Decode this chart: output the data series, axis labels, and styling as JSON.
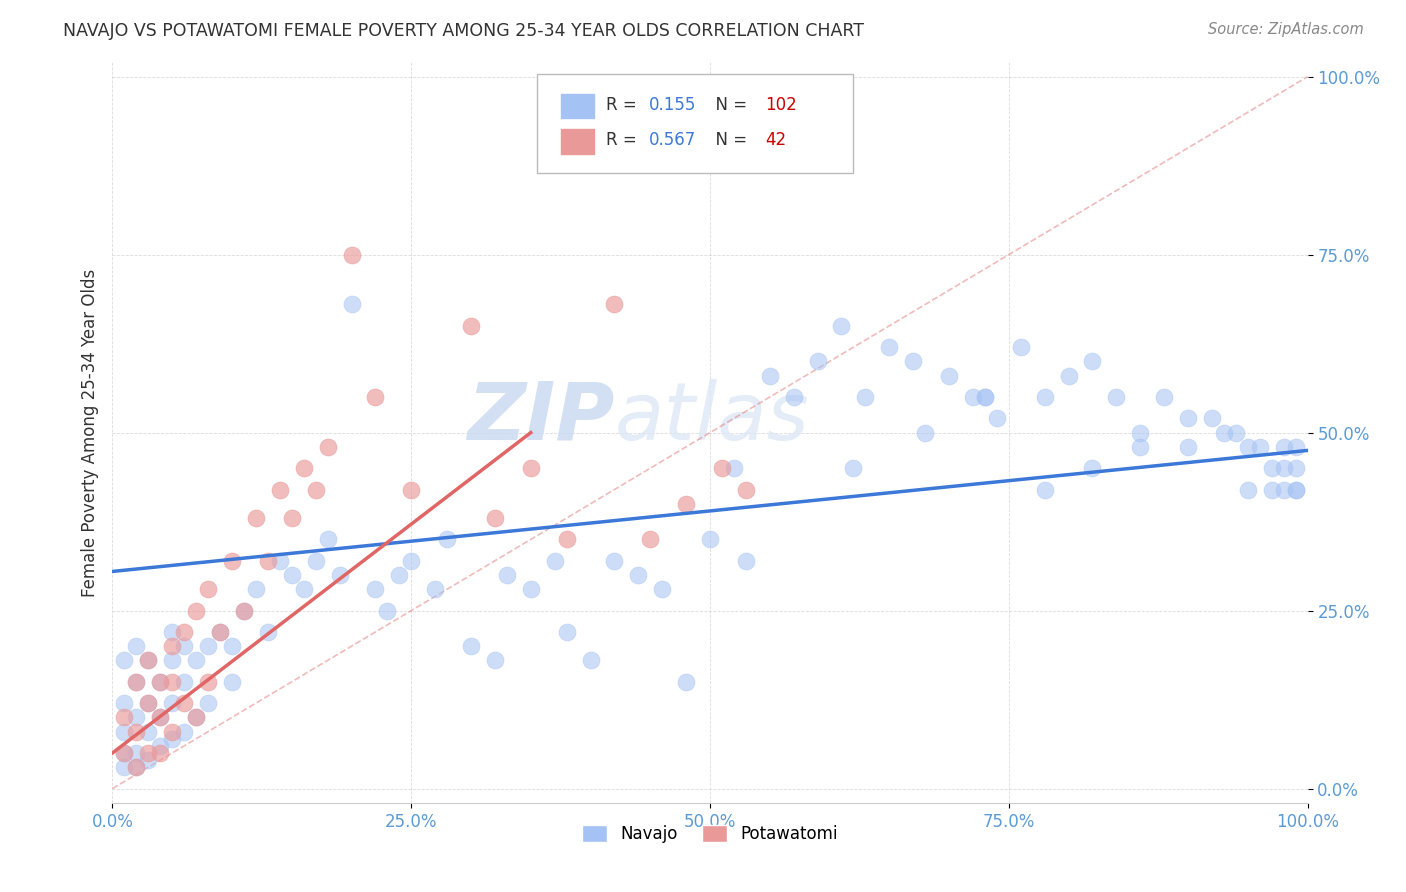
{
  "title": "NAVAJO VS POTAWATOMI FEMALE POVERTY AMONG 25-34 YEAR OLDS CORRELATION CHART",
  "source": "Source: ZipAtlas.com",
  "ylabel": "Female Poverty Among 25-34 Year Olds",
  "navajo_R": 0.155,
  "navajo_N": 102,
  "potawatomi_R": 0.567,
  "potawatomi_N": 42,
  "navajo_color": "#a4c2f4",
  "potawatomi_color": "#ea9999",
  "navajo_line_color": "#3c78d8",
  "potawatomi_line_color": "#e06666",
  "ref_line_color": "#e06666",
  "background_color": "#ffffff",
  "grid_color": "#cccccc",
  "xlim": [
    0,
    1
  ],
  "ylim": [
    -0.02,
    1.02
  ],
  "xticks": [
    0,
    0.25,
    0.5,
    0.75,
    1.0
  ],
  "yticks": [
    0,
    0.25,
    0.5,
    0.75,
    1.0
  ],
  "xticklabels": [
    "0.0%",
    "25.0%",
    "50.0%",
    "75.0%",
    "100.0%"
  ],
  "yticklabels_right": [
    "0.0%",
    "25.0%",
    "50.0%",
    "75.0%",
    "100.0%"
  ],
  "navajo_x": [
    0.01,
    0.01,
    0.01,
    0.01,
    0.01,
    0.02,
    0.02,
    0.02,
    0.02,
    0.02,
    0.03,
    0.03,
    0.03,
    0.03,
    0.04,
    0.04,
    0.04,
    0.05,
    0.05,
    0.05,
    0.05,
    0.06,
    0.06,
    0.06,
    0.07,
    0.07,
    0.08,
    0.08,
    0.09,
    0.1,
    0.1,
    0.11,
    0.12,
    0.13,
    0.14,
    0.15,
    0.16,
    0.17,
    0.18,
    0.19,
    0.2,
    0.22,
    0.23,
    0.24,
    0.25,
    0.27,
    0.28,
    0.3,
    0.32,
    0.33,
    0.35,
    0.37,
    0.38,
    0.4,
    0.42,
    0.44,
    0.46,
    0.48,
    0.5,
    0.52,
    0.55,
    0.57,
    0.59,
    0.61,
    0.63,
    0.65,
    0.67,
    0.7,
    0.72,
    0.74,
    0.76,
    0.78,
    0.8,
    0.82,
    0.84,
    0.86,
    0.88,
    0.9,
    0.92,
    0.94,
    0.95,
    0.96,
    0.97,
    0.97,
    0.98,
    0.98,
    0.98,
    0.99,
    0.99,
    0.99,
    0.99,
    0.53,
    0.73,
    0.62,
    0.68,
    0.73,
    0.78,
    0.82,
    0.86,
    0.9,
    0.93,
    0.95
  ],
  "navajo_y": [
    0.18,
    0.12,
    0.08,
    0.05,
    0.03,
    0.2,
    0.15,
    0.1,
    0.05,
    0.03,
    0.18,
    0.12,
    0.08,
    0.04,
    0.15,
    0.1,
    0.06,
    0.22,
    0.18,
    0.12,
    0.07,
    0.2,
    0.15,
    0.08,
    0.18,
    0.1,
    0.2,
    0.12,
    0.22,
    0.2,
    0.15,
    0.25,
    0.28,
    0.22,
    0.32,
    0.3,
    0.28,
    0.32,
    0.35,
    0.3,
    0.68,
    0.28,
    0.25,
    0.3,
    0.32,
    0.28,
    0.35,
    0.2,
    0.18,
    0.3,
    0.28,
    0.32,
    0.22,
    0.18,
    0.32,
    0.3,
    0.28,
    0.15,
    0.35,
    0.45,
    0.58,
    0.55,
    0.6,
    0.65,
    0.55,
    0.62,
    0.6,
    0.58,
    0.55,
    0.52,
    0.62,
    0.55,
    0.58,
    0.6,
    0.55,
    0.5,
    0.55,
    0.48,
    0.52,
    0.5,
    0.42,
    0.48,
    0.45,
    0.42,
    0.48,
    0.45,
    0.42,
    0.48,
    0.42,
    0.45,
    0.42,
    0.32,
    0.55,
    0.45,
    0.5,
    0.55,
    0.42,
    0.45,
    0.48,
    0.52,
    0.5,
    0.48
  ],
  "potawatomi_x": [
    0.01,
    0.01,
    0.02,
    0.02,
    0.02,
    0.03,
    0.03,
    0.03,
    0.04,
    0.04,
    0.04,
    0.05,
    0.05,
    0.05,
    0.06,
    0.06,
    0.07,
    0.07,
    0.08,
    0.08,
    0.09,
    0.1,
    0.11,
    0.12,
    0.13,
    0.14,
    0.15,
    0.16,
    0.17,
    0.18,
    0.2,
    0.22,
    0.25,
    0.3,
    0.32,
    0.35,
    0.38,
    0.42,
    0.45,
    0.48,
    0.51,
    0.53
  ],
  "potawatomi_y": [
    0.1,
    0.05,
    0.15,
    0.08,
    0.03,
    0.18,
    0.12,
    0.05,
    0.15,
    0.1,
    0.05,
    0.2,
    0.15,
    0.08,
    0.22,
    0.12,
    0.25,
    0.1,
    0.28,
    0.15,
    0.22,
    0.32,
    0.25,
    0.38,
    0.32,
    0.42,
    0.38,
    0.45,
    0.42,
    0.48,
    0.75,
    0.55,
    0.42,
    0.65,
    0.38,
    0.45,
    0.35,
    0.68,
    0.35,
    0.4,
    0.45,
    0.42
  ],
  "navajo_line_x0": 0.0,
  "navajo_line_y0": 0.305,
  "navajo_line_x1": 1.0,
  "navajo_line_y1": 0.475,
  "potawatomi_line_x0": 0.0,
  "potawatomi_line_y0": 0.05,
  "potawatomi_line_x1": 0.35,
  "potawatomi_line_y1": 0.5,
  "watermark_zip": "ZIP",
  "watermark_atlas": "atlas",
  "legend_navajo": "Navajo",
  "legend_potawatomi": "Potawatomi"
}
